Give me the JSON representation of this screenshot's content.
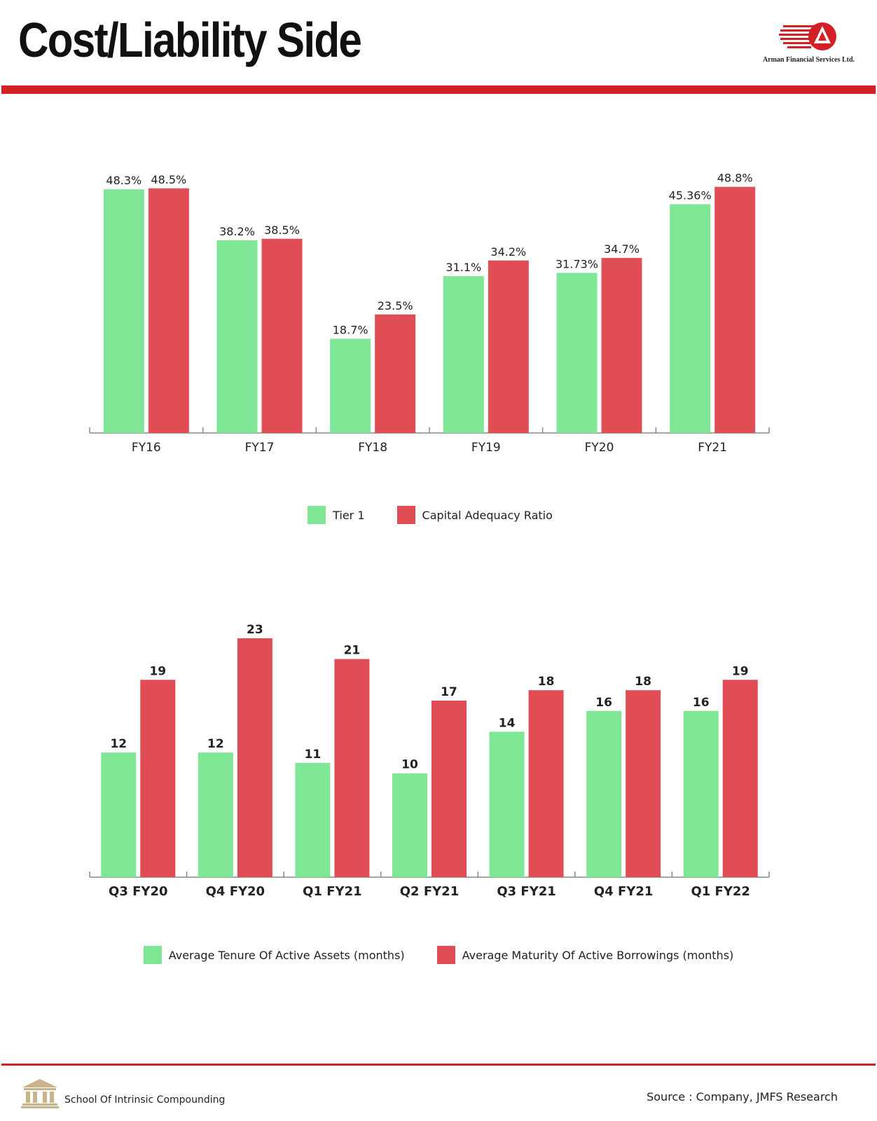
{
  "header": {
    "title": "Cost/Liability Side",
    "logo_text": "Arman Financial Services Ltd.",
    "accent_color": "#d51f26"
  },
  "footer": {
    "left_text": "School Of Intrinsic Compounding",
    "source": "Source : Company, JMFS Research"
  },
  "chart_data": [
    {
      "type": "bar",
      "categories": [
        "FY16",
        "FY17",
        "FY18",
        "FY19",
        "FY20",
        "FY21"
      ],
      "series": [
        {
          "name": "Tier 1",
          "color": "#7fe696",
          "values": [
            48.3,
            38.2,
            18.7,
            31.1,
            31.73,
            45.36
          ],
          "labels": [
            "48.3%",
            "38.2%",
            "18.7%",
            "31.1%",
            "31.73%",
            "45.36%"
          ]
        },
        {
          "name": "Capital Adequacy Ratio",
          "color": "#e04d55",
          "values": [
            48.5,
            38.5,
            23.5,
            34.2,
            34.7,
            48.8
          ],
          "labels": [
            "48.5%",
            "38.5%",
            "23.5%",
            "34.2%",
            "34.7%",
            "48.8%"
          ]
        }
      ],
      "ylim": [
        0,
        50
      ],
      "grid": false,
      "legend": "bottom"
    },
    {
      "type": "bar",
      "categories": [
        "Q3 FY20",
        "Q4 FY20",
        "Q1 FY21",
        "Q2 FY21",
        "Q3 FY21",
        "Q4 FY21",
        "Q1 FY22"
      ],
      "series": [
        {
          "name": "Average Tenure Of Active Assets (months)",
          "color": "#7fe696",
          "values": [
            12,
            12,
            11,
            10,
            14,
            16,
            16
          ],
          "labels": [
            "12",
            "12",
            "11",
            "10",
            "14",
            "16",
            "16"
          ]
        },
        {
          "name": "Average Maturity Of Active Borrowings (months)",
          "color": "#e04d55",
          "values": [
            19,
            23,
            21,
            17,
            18,
            18,
            19
          ],
          "labels": [
            "19",
            "23",
            "21",
            "17",
            "18",
            "18",
            "19"
          ]
        }
      ],
      "ylim": [
        0,
        23
      ],
      "grid": false,
      "legend": "bottom"
    }
  ]
}
